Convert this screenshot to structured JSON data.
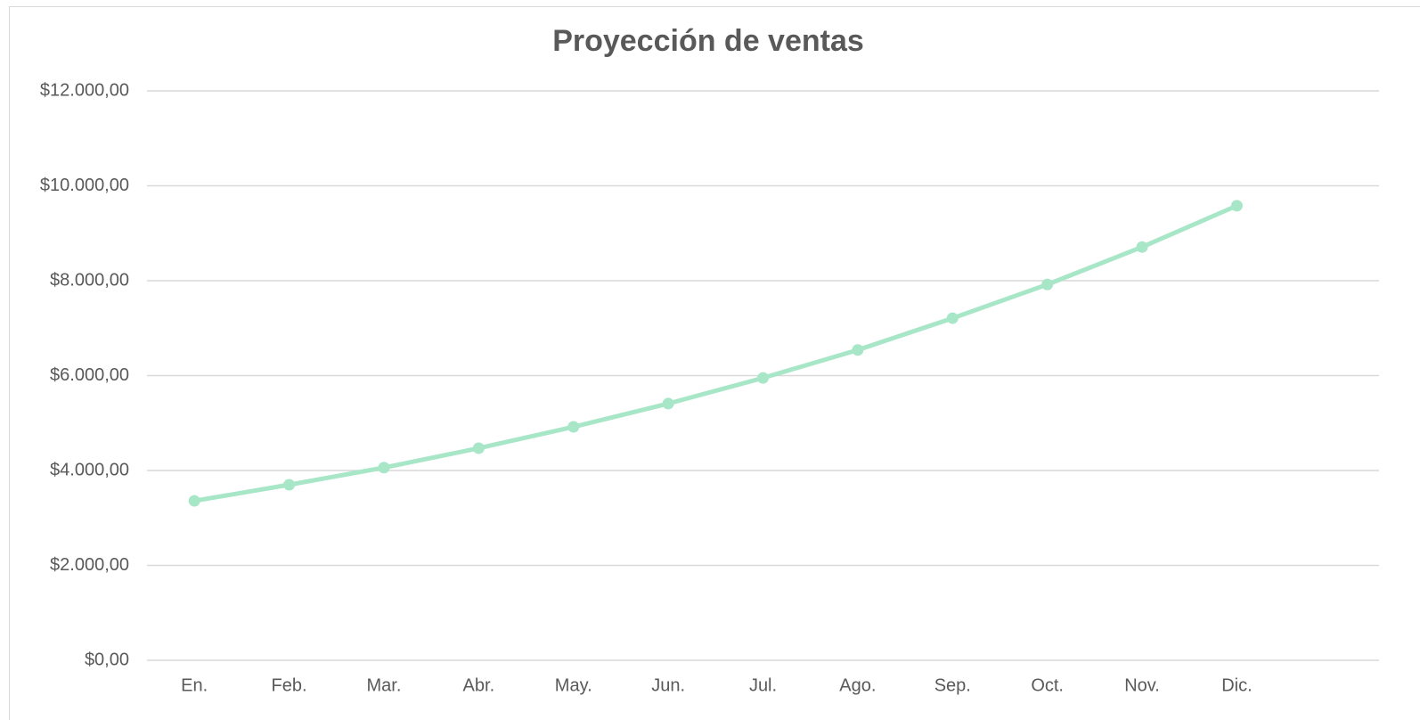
{
  "chart_data": {
    "type": "line",
    "title": "Proyección de ventas",
    "categories": [
      "En.",
      "Feb.",
      "Mar.",
      "Abr.",
      "May.",
      "Jun.",
      "Jul.",
      "Ago.",
      "Sep.",
      "Oct.",
      "Nov.",
      "Dic.",
      null
    ],
    "series": [
      {
        "color": "#a8e6c8",
        "values": [
          3360,
          3700,
          4060,
          4470,
          4920,
          5410,
          5950,
          6540,
          7210,
          7920,
          8710,
          9580,
          null
        ]
      }
    ],
    "ylim": [
      0,
      12000
    ],
    "yticks": [
      {
        "value": 0,
        "label": "$0,00"
      },
      {
        "value": 2000,
        "label": "$2.000,00"
      },
      {
        "value": 4000,
        "label": "$4.000,00"
      },
      {
        "value": 6000,
        "label": "$6.000,00"
      },
      {
        "value": 8000,
        "label": "$8.000,00"
      },
      {
        "value": 10000,
        "label": "$10.000,00"
      },
      {
        "value": 12000,
        "label": "$12.000,00"
      }
    ],
    "grid": true
  }
}
